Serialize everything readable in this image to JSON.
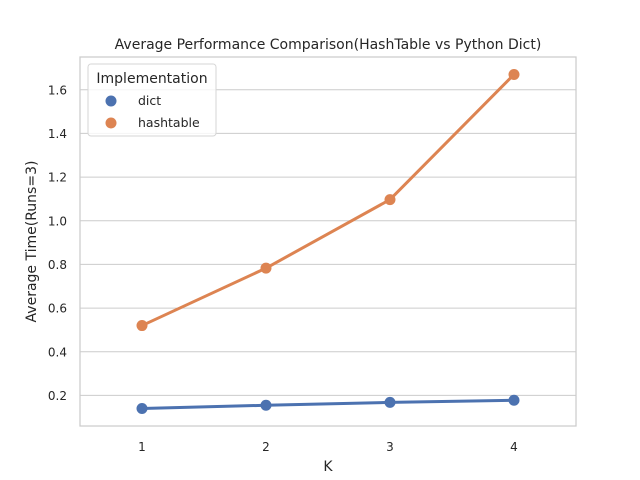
{
  "chart_data": {
    "type": "line",
    "title": "Average Performance Comparison(HashTable vs Python Dict)",
    "xlabel": "K",
    "ylabel": "Average Time(Runs=3)",
    "categories": [
      "1",
      "2",
      "3",
      "4"
    ],
    "x_ticks": [
      "1",
      "2",
      "3",
      "4"
    ],
    "y_ticks": [
      "0.2",
      "0.4",
      "0.6",
      "0.8",
      "1.0",
      "1.2",
      "1.4",
      "1.6"
    ],
    "ylim": [
      0.06,
      1.75
    ],
    "grid": "y",
    "legend": {
      "title": "Implementation",
      "placement": "top-left"
    },
    "series": [
      {
        "name": "dict",
        "color": "#4c72b0",
        "values": [
          0.14,
          0.155,
          0.168,
          0.178
        ]
      },
      {
        "name": "hashtable",
        "color": "#dd8452",
        "values": [
          0.52,
          0.783,
          1.097,
          1.67
        ]
      }
    ]
  }
}
